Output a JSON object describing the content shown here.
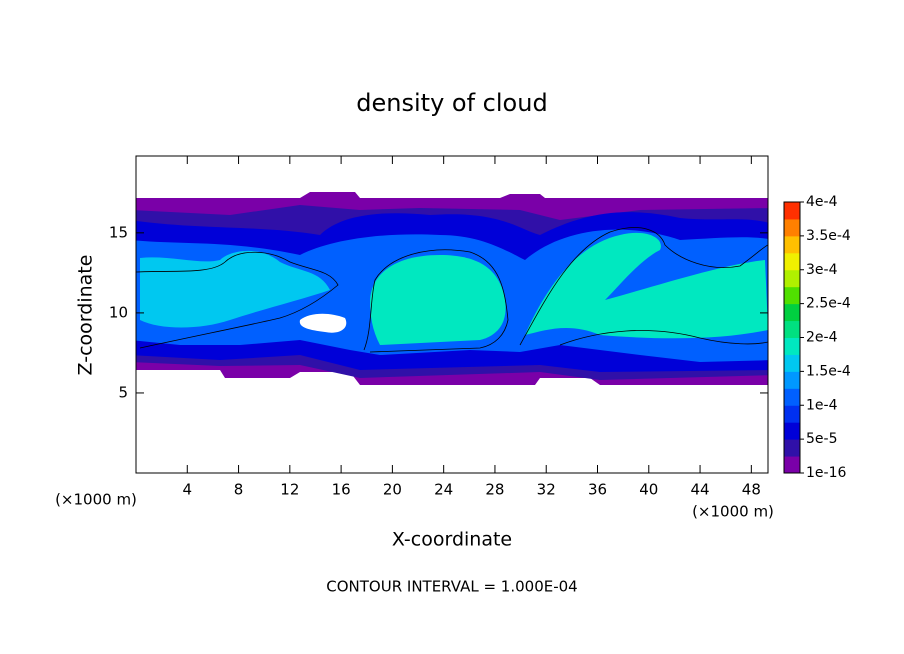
{
  "chart_data": {
    "type": "contourf",
    "title": "density of cloud",
    "x_label": "X-coordinate",
    "y_label": "Z-coordinate",
    "x_unit": "(×1000 m)",
    "y_unit": "(×1000 m)",
    "footnote": "CONTOUR INTERVAL = 1.000E-04",
    "xlim": [
      0,
      49.3
    ],
    "ylim": [
      0,
      19.8
    ],
    "xticks": [
      4,
      8,
      12,
      16,
      20,
      24,
      28,
      32,
      36,
      40,
      44,
      48
    ],
    "yticks": [
      5,
      10,
      15
    ],
    "colorbar": {
      "lim": [
        0,
        0.0004
      ],
      "ticks": [
        {
          "value": 1e-16,
          "label": "1e-16"
        },
        {
          "value": 5e-05,
          "label": "5e-5"
        },
        {
          "value": 0.0001,
          "label": "1e-4"
        },
        {
          "value": 0.00015,
          "label": "1.5e-4"
        },
        {
          "value": 0.0002,
          "label": "2e-4"
        },
        {
          "value": 0.00025,
          "label": "2.5e-4"
        },
        {
          "value": 0.0003,
          "label": "3e-4"
        },
        {
          "value": 0.00035,
          "label": "3.5e-4"
        },
        {
          "value": 0.0004,
          "label": "4e-4"
        }
      ],
      "colors": [
        "#7a00a8",
        "#3010a8",
        "#0000d8",
        "#0030f0",
        "#0060ff",
        "#0098ff",
        "#00c8f0",
        "#00e8c0",
        "#00e080",
        "#00d040",
        "#50e000",
        "#b0f000",
        "#f0f000",
        "#ffc000",
        "#ff8000",
        "#ff3000"
      ]
    }
  }
}
